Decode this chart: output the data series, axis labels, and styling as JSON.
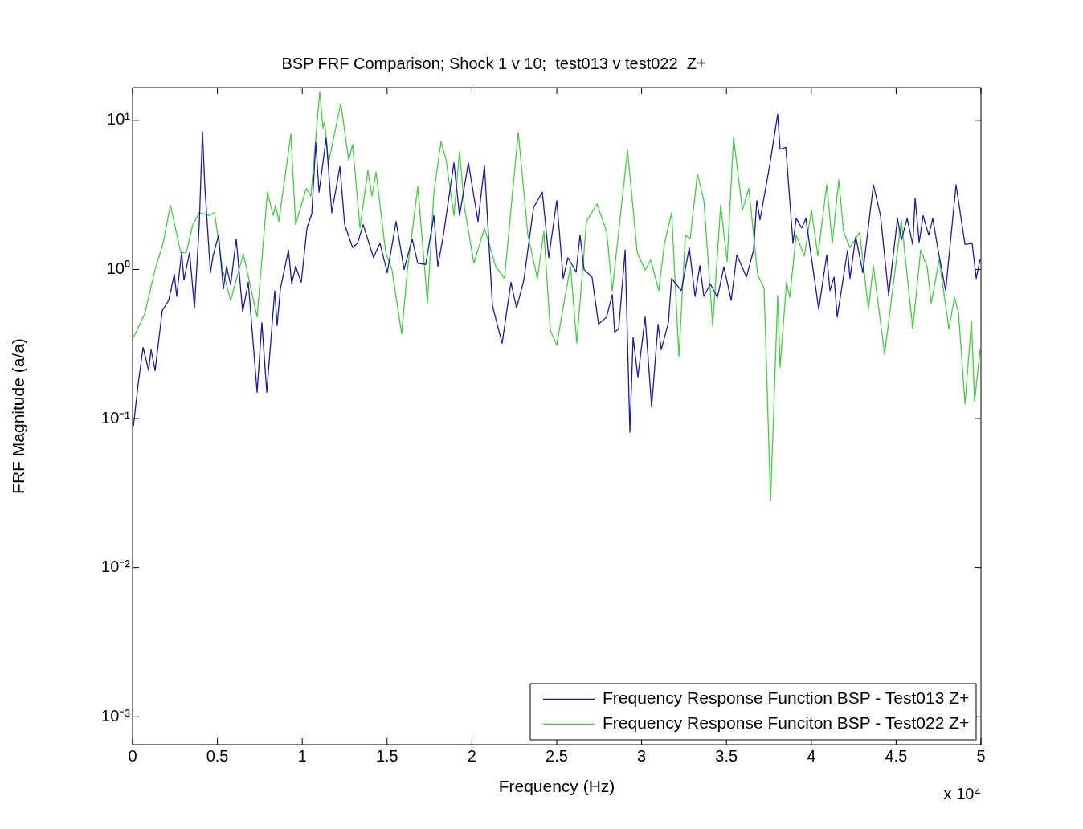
{
  "chart_data": {
    "type": "line",
    "title": "BSP FRF Comparison; Shock 1 v 10;  test013 v test022  Z+",
    "xlabel": "Frequency (Hz)",
    "ylabel": "FRF Magnitude (a/a)",
    "log": "y",
    "legend": "bottom right",
    "xlim": [
      0,
      5
    ],
    "xticks": [
      0,
      0.5,
      1,
      1.5,
      2,
      2.5,
      3,
      3.5,
      4,
      4.5,
      5
    ],
    "ylim": [
      0.00065,
      16.6
    ],
    "yticks": [
      {
        "value": 0.001,
        "label": "10⁻³"
      },
      {
        "value": 0.01,
        "label": "10⁻²"
      },
      {
        "value": 0.1,
        "label": "10⁻¹"
      },
      {
        "value": 1,
        "label": "10⁰"
      },
      {
        "value": 10,
        "label": "10¹"
      }
    ],
    "annotations": [
      "x 10⁴"
    ],
    "series": [
      {
        "name": "Frequency Response Function BSP - Test013 Z+",
        "color": "#1a1aa6",
        "x": [
          0.005,
          0.033,
          0.062,
          0.095,
          0.109,
          0.133,
          0.175,
          0.213,
          0.246,
          0.26,
          0.289,
          0.303,
          0.336,
          0.365,
          0.393,
          0.412,
          0.426,
          0.459,
          0.474,
          0.507,
          0.535,
          0.554,
          0.578,
          0.611,
          0.649,
          0.682,
          0.734,
          0.762,
          0.791,
          0.838,
          0.852,
          0.871,
          0.919,
          0.938,
          0.961,
          0.994,
          1.028,
          1.056,
          1.08,
          1.099,
          1.141,
          1.174,
          1.222,
          1.25,
          1.297,
          1.326,
          1.359,
          1.42,
          1.458,
          1.501,
          1.553,
          1.6,
          1.648,
          1.681,
          1.728,
          1.776,
          1.799,
          1.832,
          1.894,
          1.927,
          1.979,
          2.036,
          2.074,
          2.121,
          2.178,
          2.23,
          2.263,
          2.306,
          2.363,
          2.415,
          2.453,
          2.5,
          2.538,
          2.566,
          2.614,
          2.637,
          2.661,
          2.708,
          2.746,
          2.794,
          2.827,
          2.841,
          2.865,
          2.903,
          2.931,
          2.95,
          2.978,
          3.021,
          3.059,
          3.097,
          3.116,
          3.158,
          3.177,
          3.234,
          3.281,
          3.315,
          3.343,
          3.367,
          3.405,
          3.447,
          3.485,
          3.528,
          3.561,
          3.618,
          3.66,
          3.679,
          3.698,
          3.755,
          3.802,
          3.816,
          3.85,
          3.892,
          3.911,
          3.944,
          3.968,
          4.044,
          4.091,
          4.11,
          4.134,
          4.153,
          4.214,
          4.228,
          4.262,
          4.304,
          4.366,
          4.408,
          4.456,
          4.508,
          4.531,
          4.565,
          4.598,
          4.612,
          4.636,
          4.659,
          4.692,
          4.716,
          4.745,
          4.792,
          4.853,
          4.906,
          4.948,
          4.972,
          4.995
        ],
        "values": [
          0.089,
          0.17,
          0.3,
          0.21,
          0.29,
          0.21,
          0.53,
          0.62,
          0.93,
          0.66,
          1.3,
          0.85,
          1.3,
          0.55,
          2.0,
          8.4,
          3.6,
          0.95,
          1.23,
          1.7,
          0.74,
          1.05,
          0.79,
          1.6,
          0.52,
          0.82,
          0.15,
          0.44,
          0.15,
          0.72,
          0.42,
          0.74,
          1.35,
          0.8,
          1.05,
          0.82,
          1.9,
          2.35,
          7.1,
          3.3,
          7.6,
          2.4,
          4.9,
          2.0,
          1.4,
          1.5,
          2.0,
          1.2,
          1.5,
          0.95,
          2.1,
          1.0,
          1.6,
          1.1,
          1.08,
          2.3,
          1.05,
          1.7,
          5.2,
          2.3,
          5.2,
          2.1,
          5.0,
          0.57,
          0.32,
          0.82,
          0.55,
          0.85,
          2.6,
          3.3,
          1.2,
          2.9,
          0.87,
          1.2,
          0.96,
          1.7,
          1.0,
          0.89,
          0.43,
          0.48,
          0.68,
          0.38,
          0.4,
          1.35,
          0.081,
          0.35,
          0.19,
          0.48,
          0.12,
          0.43,
          0.29,
          0.44,
          0.87,
          0.72,
          1.4,
          0.66,
          1.06,
          0.66,
          0.8,
          0.65,
          1.04,
          0.62,
          1.25,
          0.89,
          1.35,
          2.9,
          2.15,
          5.0,
          11,
          6.4,
          6.6,
          1.5,
          2.2,
          1.9,
          2.2,
          0.54,
          1.25,
          0.72,
          0.89,
          0.48,
          1.35,
          0.87,
          1.66,
          0.95,
          3.7,
          2.3,
          0.67,
          2.2,
          1.58,
          2.2,
          1.47,
          3.0,
          1.52,
          2.3,
          1.7,
          2.2,
          1.4,
          0.72,
          3.7,
          1.47,
          1.5,
          0.87,
          1.17
        ]
      },
      {
        "name": "Frequency Response Funciton BSP - Test022 Z+",
        "color": "#40d040",
        "x": [
          0.005,
          0.071,
          0.133,
          0.18,
          0.223,
          0.284,
          0.317,
          0.355,
          0.393,
          0.45,
          0.483,
          0.53,
          0.578,
          0.653,
          0.734,
          0.795,
          0.829,
          0.843,
          0.862,
          0.933,
          0.961,
          1.023,
          1.051,
          1.103,
          1.122,
          1.132,
          1.155,
          1.227,
          1.274,
          1.297,
          1.34,
          1.387,
          1.411,
          1.435,
          1.492,
          1.529,
          1.586,
          1.619,
          1.681,
          1.738,
          1.776,
          1.818,
          1.847,
          1.894,
          1.927,
          1.956,
          2.012,
          2.074,
          2.14,
          2.192,
          2.273,
          2.33,
          2.386,
          2.424,
          2.462,
          2.5,
          2.547,
          2.581,
          2.618,
          2.675,
          2.737,
          2.794,
          2.827,
          2.917,
          2.974,
          3.021,
          3.054,
          3.101,
          3.135,
          3.177,
          3.22,
          3.258,
          3.286,
          3.329,
          3.367,
          3.419,
          3.466,
          3.504,
          3.542,
          3.594,
          3.632,
          3.684,
          3.722,
          3.76,
          3.802,
          3.816,
          3.854,
          3.873,
          3.911,
          3.959,
          4.001,
          4.039,
          4.091,
          4.124,
          4.162,
          4.19,
          4.228,
          4.285,
          4.337,
          4.366,
          4.432,
          4.531,
          4.598,
          4.645,
          4.683,
          4.707,
          4.754,
          4.811,
          4.844,
          4.868,
          4.906,
          4.944,
          4.962,
          4.995
        ],
        "values": [
          0.35,
          0.5,
          1.0,
          1.5,
          2.7,
          1.3,
          1.3,
          2.0,
          2.4,
          2.3,
          2.4,
          1.0,
          0.62,
          1.27,
          0.48,
          3.3,
          2.3,
          2.7,
          2.1,
          8.1,
          2.0,
          3.5,
          3.1,
          15.6,
          8.9,
          9.8,
          5.2,
          13,
          5.4,
          6.9,
          1.9,
          4.6,
          3.1,
          4.5,
          1.3,
          0.99,
          0.37,
          0.97,
          3.6,
          0.6,
          3.3,
          7.2,
          5.5,
          2.3,
          6.2,
          2.6,
          1.1,
          1.9,
          1.05,
          0.87,
          8.3,
          1.7,
          0.87,
          1.8,
          0.39,
          0.31,
          0.64,
          1.05,
          0.32,
          2.1,
          2.75,
          1.8,
          0.72,
          6.3,
          1.3,
          0.99,
          1.16,
          0.72,
          1.5,
          2.4,
          0.26,
          1.7,
          1.6,
          4.4,
          2.9,
          0.42,
          2.7,
          1.13,
          7.7,
          2.5,
          3.5,
          0.92,
          0.75,
          0.028,
          0.67,
          0.22,
          0.82,
          0.65,
          1.7,
          1.23,
          2.5,
          1.23,
          3.7,
          1.5,
          4.0,
          1.8,
          1.4,
          1.77,
          0.54,
          1.06,
          0.27,
          2.15,
          0.4,
          1.35,
          1.04,
          0.59,
          1.17,
          0.4,
          0.65,
          0.51,
          0.125,
          0.45,
          0.13,
          0.29
        ]
      }
    ]
  }
}
